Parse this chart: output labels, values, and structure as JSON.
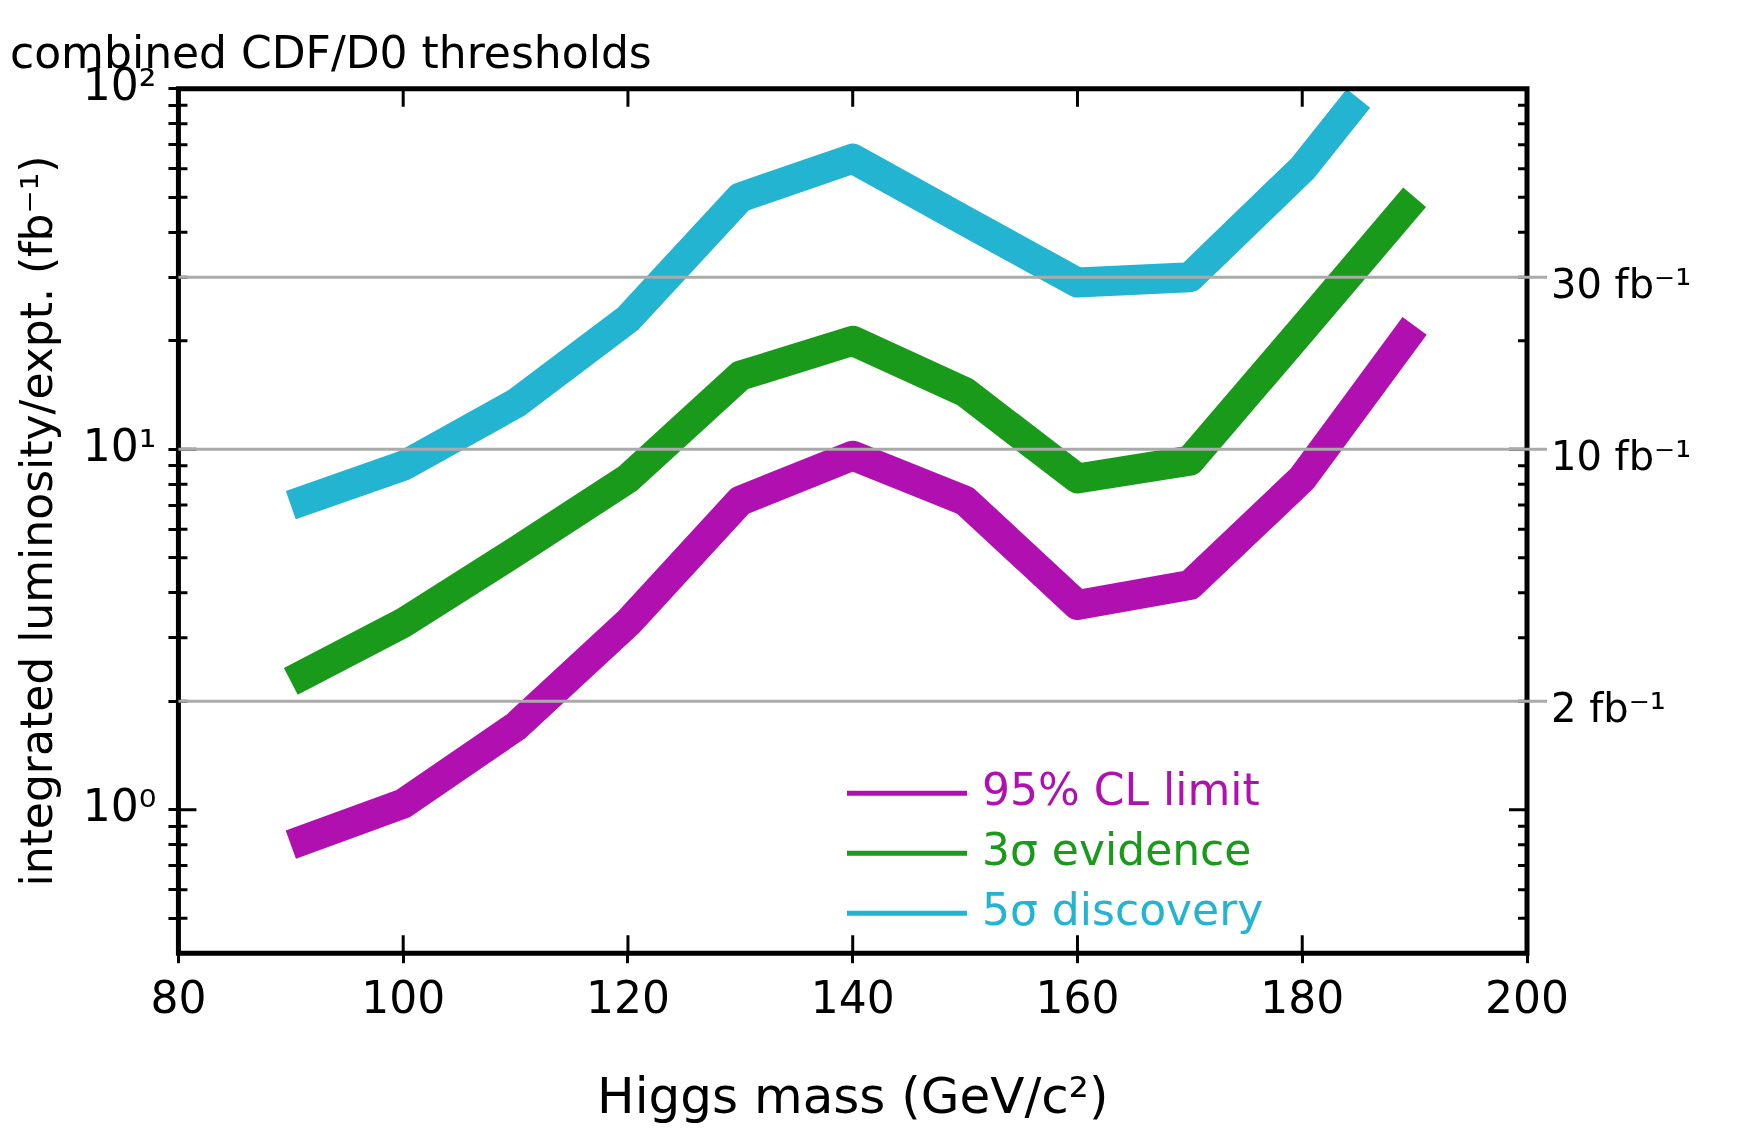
{
  "chart_data": {
    "type": "line",
    "title": "combined CDF/D0 thresholds",
    "xlabel": "Higgs mass (GeV/c²)",
    "ylabel": "integrated luminosity/expt. (fb⁻¹)",
    "x": [
      90,
      100,
      110,
      120,
      130,
      140,
      150,
      160,
      170,
      180,
      190
    ],
    "series": [
      {
        "name": "95% CL limit",
        "color": "#b010b0",
        "values": [
          0.8,
          1.04,
          1.7,
          3.3,
          7.2,
          9.6,
          7.2,
          3.7,
          4.2,
          8.3,
          22
        ]
      },
      {
        "name": "3σ evidence",
        "color": "#1a9a1a",
        "values": [
          2.27,
          3.3,
          5.2,
          8.3,
          16,
          20,
          14.4,
          8.3,
          9.3,
          21.5,
          50
        ]
      },
      {
        "name": "5σ discovery",
        "color": "#22b4d0",
        "x": [
          90,
          100,
          110,
          120,
          130,
          140,
          150,
          160,
          170,
          180,
          185
        ],
        "values": [
          7,
          9,
          13.4,
          23,
          50,
          64,
          43,
          29,
          30,
          60,
          94
        ]
      }
    ],
    "xlim": [
      80,
      200
    ],
    "xticks": [
      80,
      100,
      120,
      140,
      160,
      180,
      200
    ],
    "ylim": [
      0.4,
      100
    ],
    "log": "y",
    "yticks": [
      {
        "value": 0.5,
        "label": null
      },
      {
        "value": 0.6,
        "label": null
      },
      {
        "value": 0.7,
        "label": null
      },
      {
        "value": 0.8,
        "label": null
      },
      {
        "value": 0.9,
        "label": null
      },
      {
        "value": 1,
        "label": "10⁰"
      },
      {
        "value": 2,
        "label": null
      },
      {
        "value": 3,
        "label": null
      },
      {
        "value": 4,
        "label": null
      },
      {
        "value": 5,
        "label": null
      },
      {
        "value": 6,
        "label": null
      },
      {
        "value": 7,
        "label": null
      },
      {
        "value": 8,
        "label": null
      },
      {
        "value": 9,
        "label": null
      },
      {
        "value": 10,
        "label": "10¹"
      },
      {
        "value": 20,
        "label": null
      },
      {
        "value": 30,
        "label": null
      },
      {
        "value": 40,
        "label": null
      },
      {
        "value": 50,
        "label": null
      },
      {
        "value": 60,
        "label": null
      },
      {
        "value": 70,
        "label": null
      },
      {
        "value": 80,
        "label": null
      },
      {
        "value": 90,
        "label": null
      },
      {
        "value": 100,
        "label": "10²"
      }
    ],
    "ref_lines": [
      {
        "axis": "y",
        "value": 30,
        "label": "30 fb⁻¹",
        "color": "#aaaaaa"
      },
      {
        "axis": "y",
        "value": 10,
        "label": "10 fb⁻¹",
        "color": "#aaaaaa"
      },
      {
        "axis": "y",
        "value": 2,
        "label": "2 fb⁻¹",
        "color": "#aaaaaa"
      }
    ],
    "grid": false,
    "legend": "bottom right",
    "marker": "none",
    "line_style": "solid"
  }
}
